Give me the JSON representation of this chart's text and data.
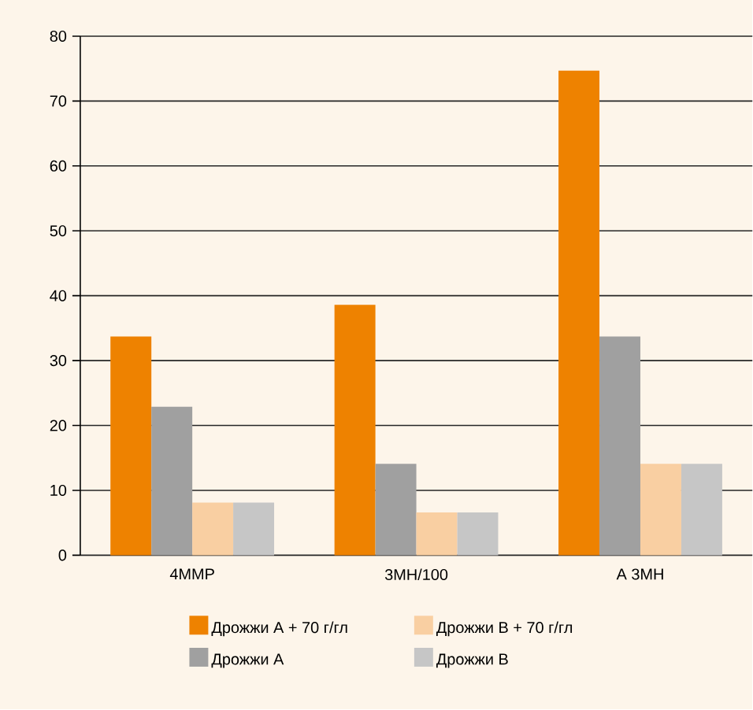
{
  "chart_data": {
    "type": "bar",
    "categories": [
      "4MMP",
      "3MH/100",
      "A 3MH"
    ],
    "series": [
      {
        "name": "Дрожжи A + 70 г/гл",
        "color": "#ee8200",
        "values": [
          33.7,
          38.6,
          74.7
        ]
      },
      {
        "name": "Дрожжи A",
        "color": "#a0a0a0",
        "values": [
          22.9,
          14.1,
          33.7
        ]
      },
      {
        "name": "Дрожжи B + 70 г/гл",
        "color": "#f9cfa2",
        "values": [
          8.1,
          6.6,
          14.1
        ]
      },
      {
        "name": "Дрожжи B",
        "color": "#c6c6c6",
        "values": [
          8.1,
          6.6,
          14.1
        ]
      }
    ],
    "ylim": [
      0,
      80
    ],
    "yticks": [
      0,
      10,
      20,
      30,
      40,
      50,
      60,
      70,
      80
    ],
    "grid": "y",
    "legend": "bottom"
  }
}
